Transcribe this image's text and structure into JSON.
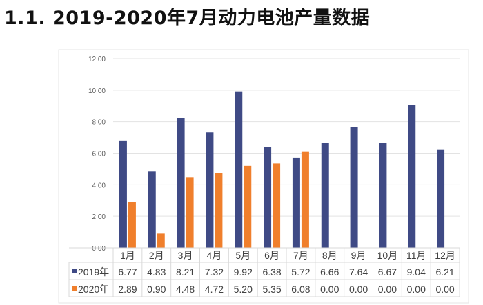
{
  "title": "1.1. 2019-2020年7月动力电池产量数据",
  "chart_data": {
    "type": "bar",
    "title": "",
    "categories": [
      "1月",
      "2月",
      "3月",
      "4月",
      "5月",
      "6月",
      "7月",
      "8月",
      "9月",
      "10月",
      "11月",
      "12月"
    ],
    "series": [
      {
        "name": "2019年",
        "color": "#3f4a85",
        "values": [
          6.77,
          4.83,
          8.21,
          7.32,
          9.92,
          6.38,
          5.72,
          6.66,
          7.64,
          6.67,
          9.04,
          6.21
        ]
      },
      {
        "name": "2020年",
        "color": "#f07f2c",
        "values": [
          2.89,
          0.9,
          4.48,
          4.72,
          5.2,
          5.35,
          6.08,
          0.0,
          0.0,
          0.0,
          0.0,
          0.0
        ]
      }
    ],
    "ylim": [
      0,
      12
    ],
    "yticks": [
      "0.00",
      "2.00",
      "4.00",
      "6.00",
      "8.00",
      "10.00",
      "12.00"
    ],
    "grid": true,
    "legend": "data-table"
  }
}
